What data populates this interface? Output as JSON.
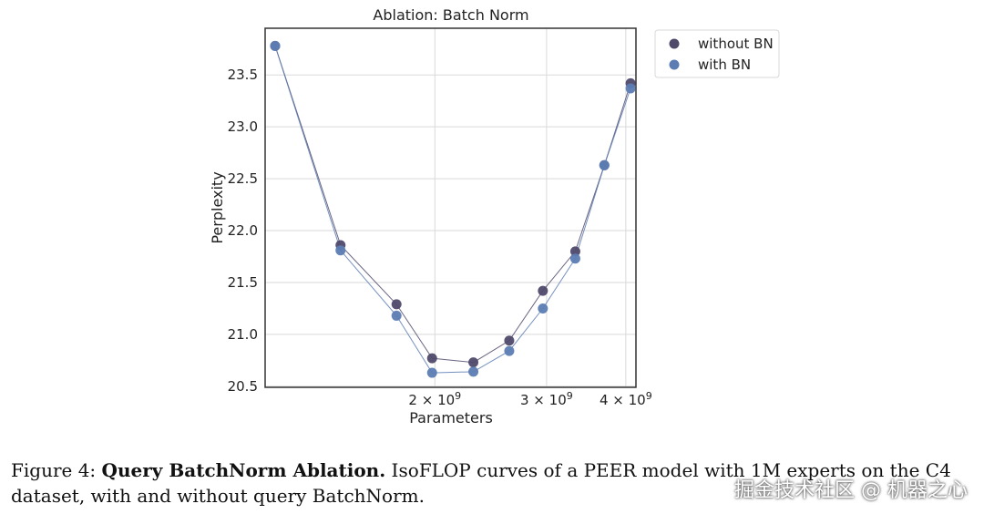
{
  "chart_data": {
    "type": "scatter",
    "title": "Ablation: Batch Norm",
    "xlabel": "Parameters",
    "ylabel": "Perplexity",
    "x_scale": "log",
    "xlim": [
      1080000000.0,
      4150000000.0
    ],
    "ylim": [
      20.49,
      23.95
    ],
    "grid": true,
    "legend_position": "upper right, outside plot",
    "y_ticks": [
      20.5,
      21.0,
      21.5,
      22.0,
      22.5,
      23.0,
      23.5
    ],
    "y_tick_labels": [
      "20.5",
      "21.0",
      "21.5",
      "22.0",
      "22.5",
      "23.0",
      "23.5"
    ],
    "x_ticks": [
      2000000000.0,
      3000000000.0,
      4000000000.0
    ],
    "x_tick_labels": [
      {
        "base": "2 × 10",
        "exp": "9"
      },
      {
        "base": "3 × 10",
        "exp": "9"
      },
      {
        "base": "4 × 10",
        "exp": "9"
      }
    ],
    "series": [
      {
        "name": "without BN",
        "color": "#4f4a6b",
        "x": [
          1120000000.0,
          1420000000.0,
          1740000000.0,
          1980000000.0,
          2300000000.0,
          2620000000.0,
          2960000000.0,
          3330000000.0,
          3700000000.0,
          4070000000.0
        ],
        "y": [
          23.78,
          21.86,
          21.29,
          20.77,
          20.73,
          20.94,
          21.42,
          21.8,
          22.63,
          23.42
        ]
      },
      {
        "name": "with BN",
        "color": "#5c7db4",
        "x": [
          1120000000.0,
          1420000000.0,
          1740000000.0,
          1980000000.0,
          2300000000.0,
          2620000000.0,
          2960000000.0,
          3330000000.0,
          3700000000.0,
          4070000000.0
        ],
        "y": [
          23.78,
          21.81,
          21.18,
          20.63,
          20.64,
          20.84,
          21.25,
          21.73,
          22.63,
          23.37
        ]
      }
    ]
  },
  "caption": {
    "prefix": "Figure 4: ",
    "bold": "Query BatchNorm Ablation.",
    "text": " IsoFLOP curves of a PEER model with 1M experts on the C4 dataset, with and without query BatchNorm."
  },
  "watermark": "掘金技术社区 @ 机器之心"
}
